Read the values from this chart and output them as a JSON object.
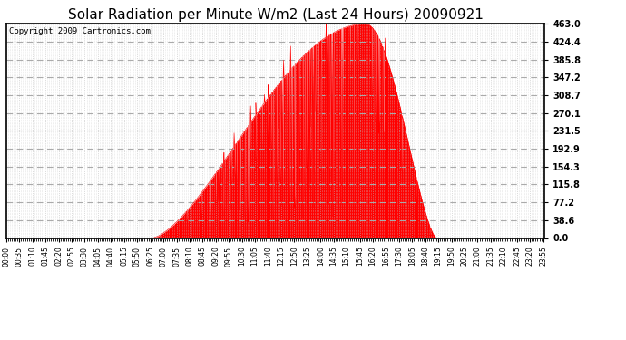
{
  "title": "Solar Radiation per Minute W/m2 (Last 24 Hours) 20090921",
  "copyright_text": "Copyright 2009 Cartronics.com",
  "yticks": [
    0.0,
    38.6,
    77.2,
    115.8,
    154.3,
    192.9,
    231.5,
    270.1,
    308.7,
    347.2,
    385.8,
    424.4,
    463.0
  ],
  "ymax": 463.0,
  "ymin": 0.0,
  "fill_color": "#FF0000",
  "line_color": "#FF0000",
  "bg_color": "#FFFFFF",
  "dashed_line_color": "#FF0000",
  "title_fontsize": 11,
  "copyright_fontsize": 6.5,
  "sunrise_min": 390,
  "sunset_min": 1150,
  "solar_noon_min": 960,
  "peak_value": 463.0
}
